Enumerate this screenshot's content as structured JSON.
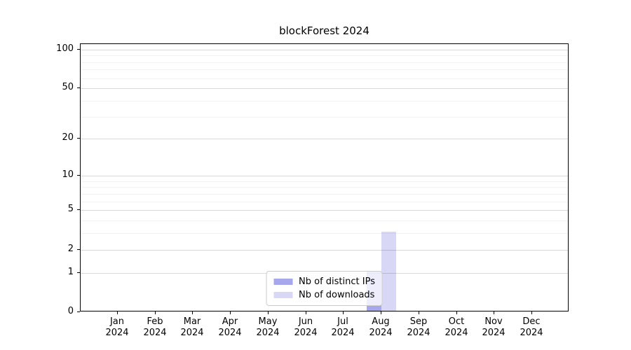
{
  "figure": {
    "title": "blockForest 2024"
  },
  "chart_data": {
    "type": "bar",
    "title": "blockForest 2024",
    "x_categories": [
      "Jan",
      "Feb",
      "Mar",
      "Apr",
      "May",
      "Jun",
      "Jul",
      "Aug",
      "Sep",
      "Oct",
      "Nov",
      "Dec"
    ],
    "x_year_label": "2024",
    "series": [
      {
        "name": "Nb of distinct IPs",
        "color": "#a7a7ee",
        "values": [
          0,
          0,
          0,
          0,
          0,
          0,
          0,
          1,
          0,
          0,
          0,
          0
        ]
      },
      {
        "name": "Nb of downloads",
        "color": "#d8d8f6",
        "values": [
          0,
          0,
          0,
          0,
          0,
          0,
          0,
          3,
          0,
          0,
          0,
          0
        ]
      }
    ],
    "xlabel": "",
    "ylabel": "",
    "y_scale": "log10(value+1)",
    "ylim": [
      0,
      110
    ],
    "y_major_ticks": [
      0,
      1,
      2,
      5,
      10,
      20,
      50,
      100
    ],
    "y_minor_ticks": [
      3,
      4,
      6,
      7,
      8,
      9,
      30,
      40,
      60,
      70,
      80,
      90
    ],
    "grid": "horizontal",
    "legend_position": "lower-center",
    "colors": {
      "axis": "#000000",
      "major_grid": "rgba(0,0,0,0.15)",
      "minor_grid": "rgba(0,0,0,0.05)",
      "legend_border": "#cccccc",
      "legend_background": "rgba(255,255,255,0.8)",
      "text": "#000000"
    }
  }
}
